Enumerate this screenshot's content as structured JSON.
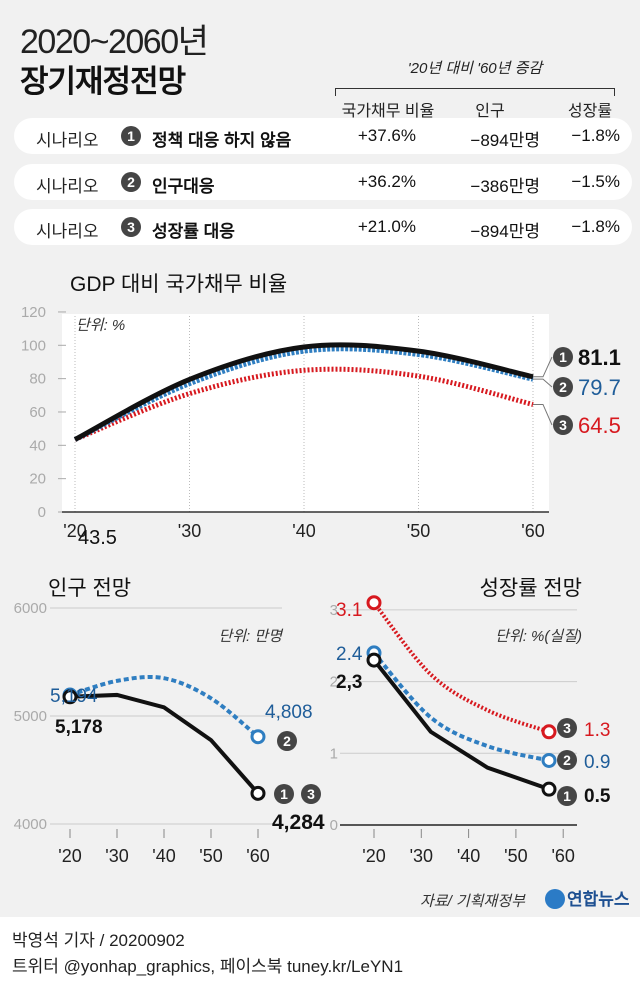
{
  "header": {
    "title_years": "2020~2060년",
    "title_main": "장기재정전망",
    "comparison_label": "'20년 대비 '60년 증감",
    "columns": [
      "국가채무 비율",
      "인구",
      "성장률"
    ]
  },
  "scenarios": [
    {
      "prefix": "시나리오",
      "num": "1",
      "name": "정책 대응 하지 않음",
      "debt": "+37.6%",
      "population": "−894만명",
      "growth": "−1.8%"
    },
    {
      "prefix": "시나리오",
      "num": "2",
      "name": "인구대응",
      "debt": "+36.2%",
      "population": "−386만명",
      "growth": "−1.5%"
    },
    {
      "prefix": "시나리오",
      "num": "3",
      "name": "성장률 대응",
      "debt": "+21.0%",
      "population": "−894만명",
      "growth": "−1.8%"
    }
  ],
  "colors": {
    "s1": "#111111",
    "s2": "#2f7ec1",
    "s2_text": "#1f5d99",
    "s3": "#d7191f",
    "badge": "#454545",
    "background": "#f1f1f1"
  },
  "chart_data": [
    {
      "type": "line",
      "title": "GDP 대비 국가채무 비율",
      "unit": "단위: %",
      "x": [
        2020,
        2030,
        2040,
        2050,
        2060
      ],
      "xticklabels": [
        "'20",
        "'30",
        "'40",
        "'50",
        "'60"
      ],
      "ylim": [
        0,
        120
      ],
      "yticks": [
        0,
        20,
        40,
        60,
        80,
        100,
        120
      ],
      "grid": "vertical-dotted",
      "series": [
        {
          "badge": "1",
          "values": [
            43.5,
            79.5,
            99,
            96.5,
            81.1
          ],
          "style": "solid",
          "color": "#111111",
          "start_label": "43.5",
          "end_label": "81.1"
        },
        {
          "badge": "2",
          "values": [
            43.5,
            77,
            96.5,
            94.5,
            79.7
          ],
          "style": "dashed",
          "color": "#2f7ec1",
          "end_label": "79.7"
        },
        {
          "badge": "3",
          "values": [
            43.5,
            71,
            85,
            81.5,
            64.5
          ],
          "style": "dotted",
          "color": "#d7191f",
          "end_label": "64.5"
        }
      ]
    },
    {
      "type": "line",
      "title": "인구 전망",
      "unit": "단위: 만명",
      "x": [
        2020,
        2030,
        2040,
        2050,
        2060
      ],
      "xticklabels": [
        "'20",
        "'30",
        "'40",
        "'50",
        "'60"
      ],
      "ylim": [
        4000,
        6000
      ],
      "yticks": [
        4000,
        5000,
        6000
      ],
      "grid": "horizontal",
      "series": [
        {
          "badges": [
            "1",
            "3"
          ],
          "values": [
            5178,
            5195,
            5080,
            4777,
            4284
          ],
          "style": "solid",
          "color": "#111111",
          "start_label": "5,178",
          "end_label": "4,284"
        },
        {
          "badges": [
            "2"
          ],
          "values": [
            5194,
            5325,
            5350,
            5164,
            4808
          ],
          "style": "dashed",
          "color": "#2f7ec1",
          "start_label": "5,194",
          "end_label": "4,808"
        }
      ]
    },
    {
      "type": "line",
      "title": "성장률 전망",
      "unit": "단위: %(실질)",
      "x": [
        2020,
        2032,
        2044,
        2057
      ],
      "xticklabels": [
        "'20",
        "'30",
        "'40",
        "'50",
        "'60"
      ],
      "xticks": [
        2020,
        2030,
        2040,
        2050,
        2060
      ],
      "ylim": [
        0,
        3.2
      ],
      "yticks": [
        0,
        1,
        2,
        3
      ],
      "grid": "horizontal",
      "series": [
        {
          "badge": "1",
          "values": [
            2.3,
            1.3,
            0.8,
            0.5
          ],
          "style": "solid",
          "color": "#111111",
          "start_label": "2,3",
          "end_label": "0.5"
        },
        {
          "badge": "2",
          "values": [
            2.4,
            1.5,
            1.1,
            0.9
          ],
          "style": "dashed",
          "color": "#2f7ec1",
          "start_label": "2.4",
          "end_label": "0.9"
        },
        {
          "badge": "3",
          "values": [
            3.1,
            2.1,
            1.6,
            1.3
          ],
          "style": "dotted",
          "color": "#d7191f",
          "start_label": "3.1",
          "end_label": "1.3"
        }
      ]
    }
  ],
  "footer": {
    "source": "자료/ 기획재정부",
    "logo": "연합뉴스",
    "byline": "박영석 기자 /  20200902",
    "social": "트위터 @yonhap_graphics, 페이스북 tuney.kr/LeYN1"
  }
}
